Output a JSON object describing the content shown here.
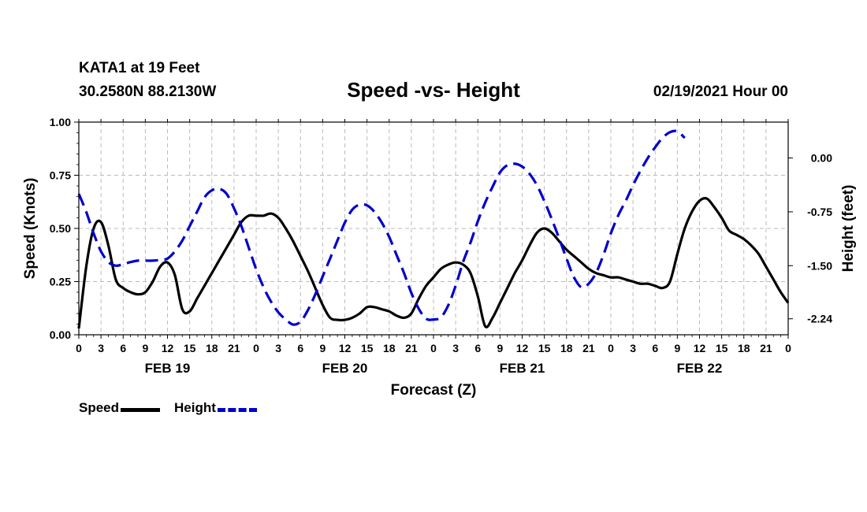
{
  "header": {
    "station": "KATA1 at 19 Feet",
    "coords": "30.2580N 88.2130W",
    "title": "Speed -vs- Height",
    "date": "02/19/2021 Hour 00"
  },
  "legend": {
    "speed_label": "Speed",
    "height_label": "Height"
  },
  "colors": {
    "speed": "#000000",
    "height": "#0000cc",
    "grid": "#bbbbbb"
  },
  "chart_data": {
    "type": "line",
    "title": "Speed -vs- Height",
    "xlabel": "Forecast (Z)",
    "ylabel": "Speed (Knots)",
    "y2label": "Height (feet)",
    "xlim": [
      0,
      96
    ],
    "ylim": [
      0,
      1
    ],
    "y2lim": [
      -2.4625,
      0.5
    ],
    "x_ticks": [
      0,
      3,
      6,
      9,
      12,
      15,
      18,
      21,
      24,
      27,
      30,
      33,
      36,
      39,
      42,
      45,
      48,
      51,
      54,
      57,
      60,
      63,
      66,
      69,
      72,
      75,
      78,
      81,
      84,
      87,
      90,
      93,
      96
    ],
    "x_tick_labels": [
      "0",
      "3",
      "6",
      "9",
      "12",
      "15",
      "18",
      "21",
      "0",
      "3",
      "6",
      "9",
      "12",
      "15",
      "18",
      "21",
      "0",
      "3",
      "6",
      "9",
      "12",
      "15",
      "18",
      "21",
      "0",
      "3",
      "6",
      "9",
      "12",
      "15",
      "18",
      "21",
      "0"
    ],
    "day_labels": [
      {
        "x": 12,
        "label": "FEB 19"
      },
      {
        "x": 36,
        "label": "FEB 20"
      },
      {
        "x": 60,
        "label": "FEB 21"
      },
      {
        "x": 84,
        "label": "FEB 22"
      }
    ],
    "y_ticks": [
      0,
      0.25,
      0.5,
      0.75,
      1.0
    ],
    "y_tick_labels": [
      "0.00",
      "0.25",
      "0.50",
      "0.75",
      "1.00"
    ],
    "y2_ticks": [
      0.0,
      -0.75,
      -1.5,
      -2.24
    ],
    "y2_tick_labels": [
      "0.00",
      "-0.75",
      "-1.50",
      "-2.24"
    ],
    "grid": true,
    "series": [
      {
        "name": "Speed",
        "axis": "left",
        "style": "solid",
        "points": [
          [
            0,
            0.03
          ],
          [
            1,
            0.32
          ],
          [
            2,
            0.5
          ],
          [
            3,
            0.53
          ],
          [
            4,
            0.42
          ],
          [
            5,
            0.26
          ],
          [
            6,
            0.22
          ],
          [
            7,
            0.2
          ],
          [
            8,
            0.19
          ],
          [
            9,
            0.2
          ],
          [
            10,
            0.25
          ],
          [
            11,
            0.32
          ],
          [
            12,
            0.34
          ],
          [
            13,
            0.28
          ],
          [
            14,
            0.12
          ],
          [
            15,
            0.11
          ],
          [
            16,
            0.17
          ],
          [
            17,
            0.23
          ],
          [
            18,
            0.29
          ],
          [
            19,
            0.35
          ],
          [
            20,
            0.41
          ],
          [
            21,
            0.47
          ],
          [
            22,
            0.53
          ],
          [
            23,
            0.56
          ],
          [
            24,
            0.56
          ],
          [
            25,
            0.56
          ],
          [
            26,
            0.57
          ],
          [
            27,
            0.55
          ],
          [
            28,
            0.5
          ],
          [
            29,
            0.44
          ],
          [
            30,
            0.37
          ],
          [
            31,
            0.3
          ],
          [
            32,
            0.22
          ],
          [
            33,
            0.14
          ],
          [
            34,
            0.08
          ],
          [
            35,
            0.07
          ],
          [
            36,
            0.07
          ],
          [
            37,
            0.08
          ],
          [
            38,
            0.1
          ],
          [
            39,
            0.13
          ],
          [
            40,
            0.13
          ],
          [
            41,
            0.12
          ],
          [
            42,
            0.11
          ],
          [
            43,
            0.09
          ],
          [
            44,
            0.08
          ],
          [
            45,
            0.1
          ],
          [
            46,
            0.17
          ],
          [
            47,
            0.23
          ],
          [
            48,
            0.27
          ],
          [
            49,
            0.31
          ],
          [
            50,
            0.33
          ],
          [
            51,
            0.34
          ],
          [
            52,
            0.33
          ],
          [
            53,
            0.29
          ],
          [
            54,
            0.18
          ],
          [
            55,
            0.04
          ],
          [
            56,
            0.08
          ],
          [
            57,
            0.15
          ],
          [
            58,
            0.22
          ],
          [
            59,
            0.29
          ],
          [
            60,
            0.35
          ],
          [
            61,
            0.42
          ],
          [
            62,
            0.48
          ],
          [
            63,
            0.5
          ],
          [
            64,
            0.48
          ],
          [
            65,
            0.44
          ],
          [
            66,
            0.4
          ],
          [
            67,
            0.37
          ],
          [
            68,
            0.34
          ],
          [
            69,
            0.31
          ],
          [
            70,
            0.29
          ],
          [
            71,
            0.28
          ],
          [
            72,
            0.27
          ],
          [
            73,
            0.27
          ],
          [
            74,
            0.26
          ],
          [
            75,
            0.25
          ],
          [
            76,
            0.24
          ],
          [
            77,
            0.24
          ],
          [
            78,
            0.23
          ],
          [
            79,
            0.22
          ],
          [
            80,
            0.25
          ],
          [
            81,
            0.38
          ],
          [
            82,
            0.5
          ],
          [
            83,
            0.58
          ],
          [
            84,
            0.63
          ],
          [
            85,
            0.64
          ],
          [
            86,
            0.6
          ],
          [
            87,
            0.55
          ],
          [
            88,
            0.49
          ],
          [
            89,
            0.47
          ],
          [
            90,
            0.45
          ],
          [
            91,
            0.42
          ],
          [
            92,
            0.38
          ],
          [
            93,
            0.32
          ],
          [
            94,
            0.26
          ],
          [
            95,
            0.2
          ],
          [
            96,
            0.15
          ]
        ]
      },
      {
        "name": "Height",
        "axis": "right",
        "style": "dashed",
        "points": [
          [
            0,
            -0.5
          ],
          [
            1,
            -0.75
          ],
          [
            2,
            -1.05
          ],
          [
            3,
            -1.3
          ],
          [
            4,
            -1.45
          ],
          [
            5,
            -1.5
          ],
          [
            6,
            -1.48
          ],
          [
            7,
            -1.45
          ],
          [
            8,
            -1.43
          ],
          [
            9,
            -1.43
          ],
          [
            10,
            -1.43
          ],
          [
            11,
            -1.42
          ],
          [
            12,
            -1.4
          ],
          [
            13,
            -1.3
          ],
          [
            14,
            -1.15
          ],
          [
            15,
            -0.95
          ],
          [
            16,
            -0.75
          ],
          [
            17,
            -0.55
          ],
          [
            18,
            -0.45
          ],
          [
            19,
            -0.43
          ],
          [
            20,
            -0.5
          ],
          [
            21,
            -0.7
          ],
          [
            22,
            -0.95
          ],
          [
            23,
            -1.25
          ],
          [
            24,
            -1.55
          ],
          [
            25,
            -1.8
          ],
          [
            26,
            -2.0
          ],
          [
            27,
            -2.15
          ],
          [
            28,
            -2.25
          ],
          [
            29,
            -2.32
          ],
          [
            30,
            -2.28
          ],
          [
            31,
            -2.12
          ],
          [
            32,
            -1.9
          ],
          [
            33,
            -1.65
          ],
          [
            34,
            -1.4
          ],
          [
            35,
            -1.15
          ],
          [
            36,
            -0.9
          ],
          [
            37,
            -0.72
          ],
          [
            38,
            -0.65
          ],
          [
            39,
            -0.66
          ],
          [
            40,
            -0.75
          ],
          [
            41,
            -0.9
          ],
          [
            42,
            -1.1
          ],
          [
            43,
            -1.35
          ],
          [
            44,
            -1.6
          ],
          [
            45,
            -1.88
          ],
          [
            46,
            -2.1
          ],
          [
            47,
            -2.24
          ],
          [
            48,
            -2.25
          ],
          [
            49,
            -2.22
          ],
          [
            50,
            -2.05
          ],
          [
            51,
            -1.78
          ],
          [
            52,
            -1.45
          ],
          [
            53,
            -1.18
          ],
          [
            54,
            -0.88
          ],
          [
            55,
            -0.62
          ],
          [
            56,
            -0.4
          ],
          [
            57,
            -0.2
          ],
          [
            58,
            -0.1
          ],
          [
            59,
            -0.08
          ],
          [
            60,
            -0.12
          ],
          [
            61,
            -0.22
          ],
          [
            62,
            -0.38
          ],
          [
            63,
            -0.6
          ],
          [
            64,
            -0.85
          ],
          [
            65,
            -1.12
          ],
          [
            66,
            -1.4
          ],
          [
            67,
            -1.66
          ],
          [
            68,
            -1.8
          ],
          [
            69,
            -1.75
          ],
          [
            70,
            -1.6
          ],
          [
            71,
            -1.35
          ],
          [
            72,
            -1.05
          ],
          [
            73,
            -0.8
          ],
          [
            74,
            -0.6
          ],
          [
            75,
            -0.38
          ],
          [
            76,
            -0.18
          ],
          [
            77,
            0.0
          ],
          [
            78,
            0.15
          ],
          [
            79,
            0.28
          ],
          [
            80,
            0.36
          ],
          [
            81,
            0.37
          ],
          [
            82,
            0.28
          ]
        ]
      }
    ]
  }
}
